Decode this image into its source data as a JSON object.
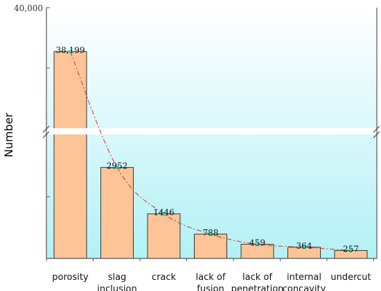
{
  "chart_data": {
    "type": "bar",
    "ylabel": "Number",
    "y_axis_top_label": "40,000",
    "axis_break": true,
    "categories": [
      [
        "porosity"
      ],
      [
        "slag",
        "inclusion"
      ],
      [
        "crack"
      ],
      [
        "lack of",
        "fusion"
      ],
      [
        "lack of",
        "penetration"
      ],
      [
        "internal",
        "concavity"
      ],
      [
        "undercut"
      ]
    ],
    "values": [
      38199,
      2952,
      1446,
      788,
      459,
      364,
      257
    ],
    "value_labels": [
      "38,199",
      "2952",
      "1446",
      "788",
      "459",
      "364",
      "257"
    ],
    "trend_line": "dash-dot",
    "colors": {
      "bar_fill": "#fdc597",
      "bar_stroke": "#333333",
      "trend_line": "#e23b2e",
      "marker": "#3fd6c8",
      "background_top": "#ffffff",
      "background_bottom": "#b2f1f6",
      "axis": "#555555"
    }
  }
}
